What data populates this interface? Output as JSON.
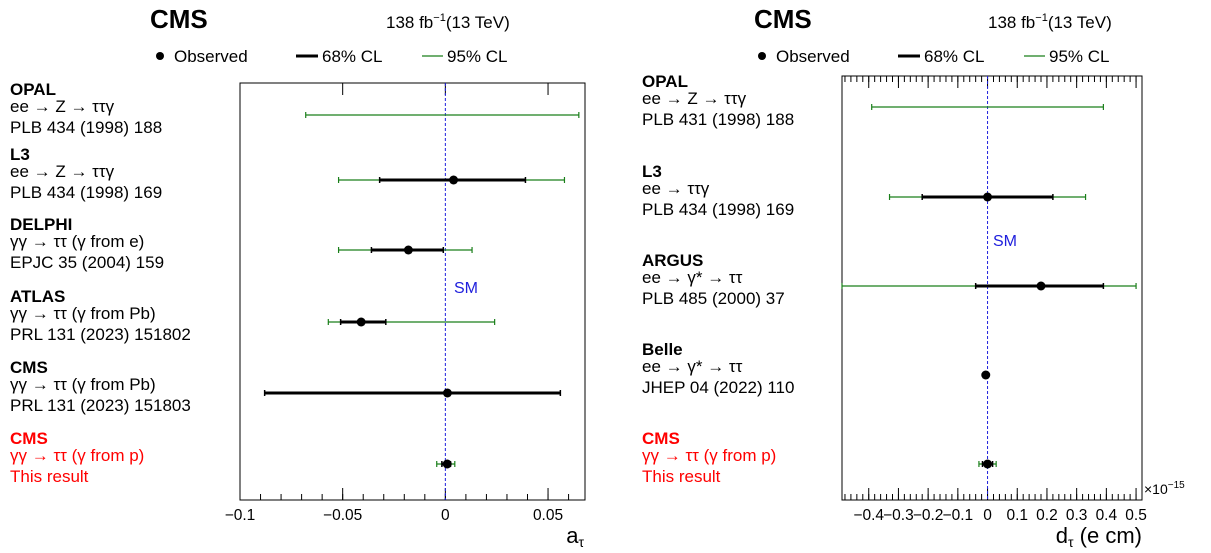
{
  "chart_data": [
    {
      "type": "scatter",
      "experiment": "CMS",
      "luminosity": "138 fb",
      "lumi_exponent": "−1",
      "energy": "(13 TeV)",
      "legend": [
        {
          "label": "Observed",
          "color": "#000000"
        },
        {
          "label": "68% CL",
          "color": "#000000"
        },
        {
          "label": "95% CL",
          "color": "#1a7f1a"
        }
      ],
      "sm_label": "SM",
      "sm_value": 0,
      "xlabel": "a",
      "xlabel_sub": "τ",
      "xlim": [
        -0.1,
        0.068
      ],
      "x_ticks": [
        -0.1,
        -0.05,
        0,
        0.05
      ],
      "x_tick_labels": [
        "−0.1",
        "−0.05",
        "0",
        "0.05"
      ],
      "entries": [
        {
          "name": "OPAL",
          "process": "ee → Z → ττγ",
          "reference": "PLB 434 (1998) 188",
          "color": "#000000",
          "central": null,
          "cl68": null,
          "cl95": [
            -0.068,
            0.065
          ]
        },
        {
          "name": "L3",
          "process": "ee → Z → ττγ",
          "reference": "PLB 434 (1998) 169",
          "color": "#000000",
          "central": 0.004,
          "cl68": [
            -0.032,
            0.039
          ],
          "cl95": [
            -0.052,
            0.058
          ]
        },
        {
          "name": "DELPHI",
          "process": "γγ → ττ (γ from e)",
          "reference": "EPJC 35 (2004) 159",
          "color": "#000000",
          "central": -0.018,
          "cl68": [
            -0.036,
            -0.001
          ],
          "cl95": [
            -0.052,
            0.013
          ]
        },
        {
          "name": "ATLAS",
          "process": "γγ → ττ (γ from Pb)",
          "reference": "PRL 131 (2023) 151802",
          "color": "#000000",
          "central": -0.041,
          "cl68": [
            -0.051,
            -0.029
          ],
          "cl95": [
            -0.057,
            0.024
          ]
        },
        {
          "name": "CMS",
          "process": "γγ → ττ (γ from Pb)",
          "reference": "PRL 131 (2023) 151803",
          "color": "#000000",
          "central": 0.001,
          "cl68": [
            -0.088,
            0.056
          ],
          "cl95": null
        },
        {
          "name": "CMS",
          "process": "γγ → ττ (γ from p)",
          "reference": "This result",
          "color": "#ff0000",
          "central": 0.0009,
          "cl68": [
            -0.0017,
            0.0025
          ],
          "cl95": [
            -0.0042,
            0.0046
          ]
        }
      ]
    },
    {
      "type": "scatter",
      "experiment": "CMS",
      "luminosity": "138 fb",
      "lumi_exponent": "−1",
      "energy": "(13 TeV)",
      "legend": [
        {
          "label": "Observed",
          "color": "#000000"
        },
        {
          "label": "68% CL",
          "color": "#000000"
        },
        {
          "label": "95% CL",
          "color": "#1a7f1a"
        }
      ],
      "sm_label": "SM",
      "sm_value": 0,
      "xlabel": "d",
      "xlabel_sub": "τ",
      "xlabel_unit": " (e cm)",
      "axis_multiplier": "×10",
      "axis_multiplier_exp": "−15",
      "xlim": [
        -0.49,
        0.52
      ],
      "x_ticks": [
        -0.4,
        -0.3,
        -0.2,
        -0.1,
        0,
        0.1,
        0.2,
        0.3,
        0.4,
        0.5
      ],
      "x_tick_labels": [
        "−0.4",
        "−0.3",
        "−0.2",
        "−0.1",
        "0",
        "0.1",
        "0.2",
        "0.3",
        "0.4",
        "0.5"
      ],
      "entries": [
        {
          "name": "OPAL",
          "process": "ee → Z → ττγ",
          "reference": "PLB 431 (1998) 188",
          "color": "#000000",
          "central": null,
          "cl68": null,
          "cl95": [
            -0.39,
            0.39
          ]
        },
        {
          "name": "L3",
          "process": "ee → ττγ",
          "reference": "PLB 434 (1998) 169",
          "color": "#000000",
          "central": 0.0,
          "cl68": [
            -0.22,
            0.22
          ],
          "cl95": [
            -0.33,
            0.33
          ]
        },
        {
          "name": "ARGUS",
          "process": "ee → γ* → ττ",
          "reference": "PLB 485 (2000) 37",
          "color": "#000000",
          "central": 0.18,
          "cl68": [
            -0.04,
            0.39
          ],
          "cl95": [
            -0.49,
            0.5
          ]
        },
        {
          "name": "Belle",
          "process": "ee → γ* → ττ",
          "reference": "JHEP 04 (2022) 110",
          "color": "#000000",
          "central": -0.006,
          "cl68": null,
          "cl95": null
        },
        {
          "name": "CMS",
          "process": "γγ → ττ (γ from p)",
          "reference": "This result",
          "color": "#ff0000",
          "central": 0.0,
          "cl68": [
            -0.017,
            0.017
          ],
          "cl95": [
            -0.029,
            0.029
          ]
        }
      ]
    }
  ]
}
